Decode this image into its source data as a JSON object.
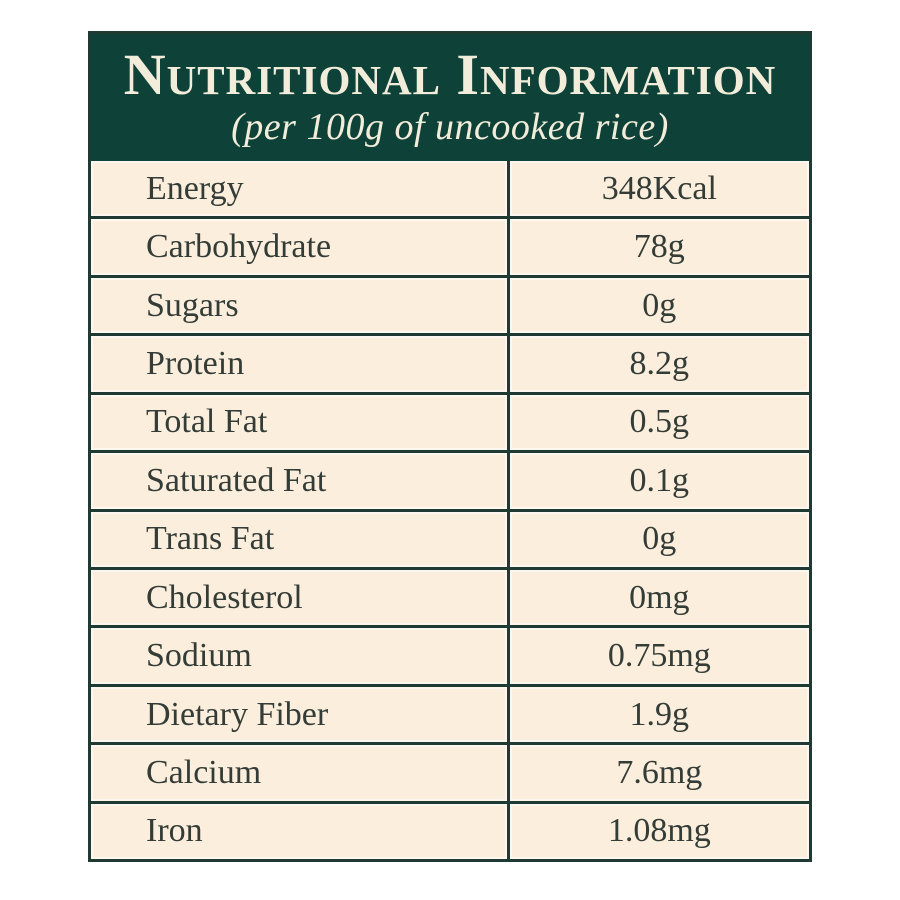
{
  "label": {
    "title": "Nutritional Information",
    "subtitle": "(per 100g of uncooked rice)",
    "colors": {
      "header_bg": "#0e4238",
      "border": "#1e3a33",
      "row_bg": "#fceedd",
      "row_text": "#333c36",
      "header_text": "#f2edda"
    },
    "rows": [
      {
        "name": "Energy",
        "value": "348Kcal"
      },
      {
        "name": "Carbohydrate",
        "value": "78g"
      },
      {
        "name": "Sugars",
        "value": "0g"
      },
      {
        "name": "Protein",
        "value": "8.2g"
      },
      {
        "name": "Total Fat",
        "value": "0.5g"
      },
      {
        "name": "Saturated Fat",
        "value": "0.1g"
      },
      {
        "name": "Trans Fat",
        "value": "0g"
      },
      {
        "name": "Cholesterol",
        "value": "0mg"
      },
      {
        "name": "Sodium",
        "value": "0.75mg"
      },
      {
        "name": "Dietary Fiber",
        "value": "1.9g"
      },
      {
        "name": "Calcium",
        "value": "7.6mg"
      },
      {
        "name": "Iron",
        "value": "1.08mg"
      }
    ]
  }
}
